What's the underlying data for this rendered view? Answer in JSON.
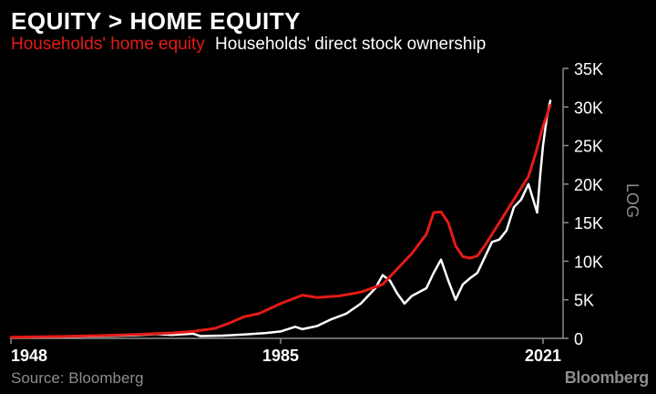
{
  "title": "EQUITY > HOME EQUITY",
  "source": "Source: Bloomberg",
  "brand": "Bloomberg",
  "colors": {
    "background": "#000000",
    "home_equity": "#e41b17",
    "stock": "#ffffff",
    "axis": "#8c8c8c"
  },
  "chart_data": {
    "type": "line",
    "title": "EQUITY > HOME EQUITY",
    "ylabel": "LOG",
    "ylim": [
      0,
      35000
    ],
    "xlim": [
      1948,
      2023
    ],
    "yticks": [
      0,
      5000,
      10000,
      15000,
      20000,
      25000,
      30000,
      35000
    ],
    "ytick_labels": [
      "0",
      "5K",
      "10K",
      "15K",
      "20K",
      "25K",
      "30K",
      "35K"
    ],
    "xticks": [
      1948,
      1985,
      2021
    ],
    "xtick_labels": [
      "1948",
      "1985",
      "2021"
    ],
    "grid": false,
    "legend_position": "top-left",
    "series": [
      {
        "name": "Households' home equity",
        "color": "#e41b17",
        "points": [
          [
            1948,
            150
          ],
          [
            1955,
            250
          ],
          [
            1960,
            350
          ],
          [
            1965,
            500
          ],
          [
            1970,
            700
          ],
          [
            1973,
            900
          ],
          [
            1976,
            1300
          ],
          [
            1978,
            2000
          ],
          [
            1980,
            2800
          ],
          [
            1982,
            3200
          ],
          [
            1985,
            4500
          ],
          [
            1988,
            5600
          ],
          [
            1990,
            5300
          ],
          [
            1993,
            5500
          ],
          [
            1996,
            6000
          ],
          [
            1999,
            7000
          ],
          [
            2001,
            9000
          ],
          [
            2003,
            11000
          ],
          [
            2005,
            13500
          ],
          [
            2006,
            16300
          ],
          [
            2007,
            16400
          ],
          [
            2008,
            15000
          ],
          [
            2009,
            12000
          ],
          [
            2010,
            10600
          ],
          [
            2011,
            10400
          ],
          [
            2012,
            10700
          ],
          [
            2013,
            12000
          ],
          [
            2014,
            13500
          ],
          [
            2015,
            15000
          ],
          [
            2016,
            16500
          ],
          [
            2017,
            18000
          ],
          [
            2018,
            19500
          ],
          [
            2019,
            21000
          ],
          [
            2020,
            24000
          ],
          [
            2021,
            27500
          ],
          [
            2022,
            30200
          ]
        ]
      },
      {
        "name": "Households' direct stock ownership",
        "color": "#ffffff",
        "points": [
          [
            1948,
            120
          ],
          [
            1955,
            200
          ],
          [
            1960,
            280
          ],
          [
            1965,
            400
          ],
          [
            1968,
            550
          ],
          [
            1970,
            450
          ],
          [
            1973,
            600
          ],
          [
            1974,
            300
          ],
          [
            1977,
            350
          ],
          [
            1980,
            500
          ],
          [
            1983,
            700
          ],
          [
            1985,
            900
          ],
          [
            1987,
            1500
          ],
          [
            1988,
            1200
          ],
          [
            1990,
            1600
          ],
          [
            1992,
            2500
          ],
          [
            1994,
            3200
          ],
          [
            1996,
            4500
          ],
          [
            1998,
            6500
          ],
          [
            1999,
            8200
          ],
          [
            2000,
            7500
          ],
          [
            2001,
            5800
          ],
          [
            2002,
            4500
          ],
          [
            2003,
            5500
          ],
          [
            2005,
            6500
          ],
          [
            2006,
            8500
          ],
          [
            2007,
            10200
          ],
          [
            2008,
            7500
          ],
          [
            2009,
            5000
          ],
          [
            2010,
            7000
          ],
          [
            2011,
            7800
          ],
          [
            2012,
            8500
          ],
          [
            2013,
            10500
          ],
          [
            2014,
            12500
          ],
          [
            2015,
            12800
          ],
          [
            2016,
            14000
          ],
          [
            2017,
            17000
          ],
          [
            2018,
            18000
          ],
          [
            2019,
            20000
          ],
          [
            2020.2,
            16300
          ],
          [
            2020.6,
            21000
          ],
          [
            2021,
            25000
          ],
          [
            2021.5,
            28500
          ],
          [
            2022,
            30800
          ]
        ]
      }
    ]
  }
}
